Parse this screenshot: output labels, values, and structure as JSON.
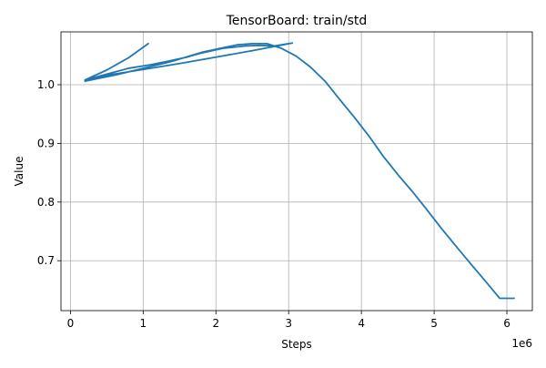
{
  "chart_data": {
    "type": "line",
    "title": "TensorBoard: train/std",
    "xlabel": "Steps",
    "ylabel": "Value",
    "x_offset_text": "1e6",
    "xlim": [
      -0.13,
      6.35
    ],
    "ylim": [
      0.615,
      1.09
    ],
    "x_ticks": [
      0,
      1,
      2,
      3,
      4,
      5,
      6
    ],
    "x_tick_labels": [
      "0",
      "1",
      "2",
      "3",
      "4",
      "5",
      "6"
    ],
    "y_ticks": [
      0.7,
      0.8,
      0.9,
      1.0
    ],
    "y_tick_labels": [
      "0.7",
      "0.8",
      "0.9",
      "1.0"
    ],
    "grid": true,
    "line_color": "#1f77b4",
    "series": [
      {
        "x": [
          0.2,
          0.5,
          0.8,
          1.07,
          0.8,
          0.5,
          0.2,
          0.5,
          0.8,
          1.1,
          1.3,
          1.6,
          1.8,
          2.1,
          2.4,
          2.6,
          2.8,
          3.0,
          3.05,
          2.5,
          2.0,
          1.5,
          1.0,
          0.5,
          0.2,
          0.6,
          1.0,
          1.4,
          1.8,
          2.1,
          2.3,
          2.5,
          2.7,
          2.9,
          3.1,
          3.3,
          3.5,
          3.7,
          3.9,
          4.1,
          4.3,
          4.5,
          4.7,
          4.9,
          5.1,
          5.3,
          5.5,
          5.7,
          5.9,
          6.1
        ],
        "y": [
          1.008,
          1.025,
          1.046,
          1.07,
          1.046,
          1.025,
          1.008,
          1.018,
          1.028,
          1.034,
          1.039,
          1.047,
          1.054,
          1.062,
          1.066,
          1.067,
          1.066,
          1.07,
          1.071,
          1.058,
          1.047,
          1.036,
          1.026,
          1.016,
          1.006,
          1.016,
          1.028,
          1.04,
          1.055,
          1.063,
          1.068,
          1.07,
          1.07,
          1.062,
          1.049,
          1.03,
          1.006,
          0.975,
          0.945,
          0.913,
          0.878,
          0.847,
          0.818,
          0.787,
          0.755,
          0.725,
          0.695,
          0.666,
          0.636,
          0.636
        ]
      }
    ]
  }
}
